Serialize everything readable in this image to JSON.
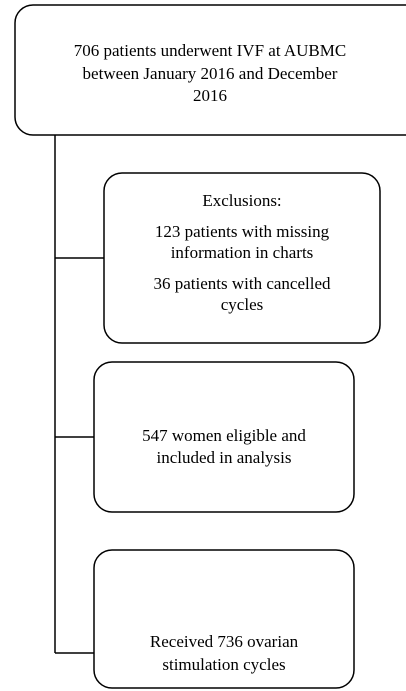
{
  "nodes": [
    {
      "lines": [
        "706 patients underwent IVF at AUBMC",
        "between January 2016 and December",
        "2016"
      ]
    },
    {
      "lines": [
        "Exclusions:",
        "123 patients with missing",
        "information in charts",
        "36 patients with cancelled",
        "cycles"
      ]
    },
    {
      "lines": [
        "547 women eligible and",
        "included in analysis"
      ]
    },
    {
      "lines": [
        "Received 736 ovarian",
        "stimulation cycles"
      ]
    }
  ]
}
